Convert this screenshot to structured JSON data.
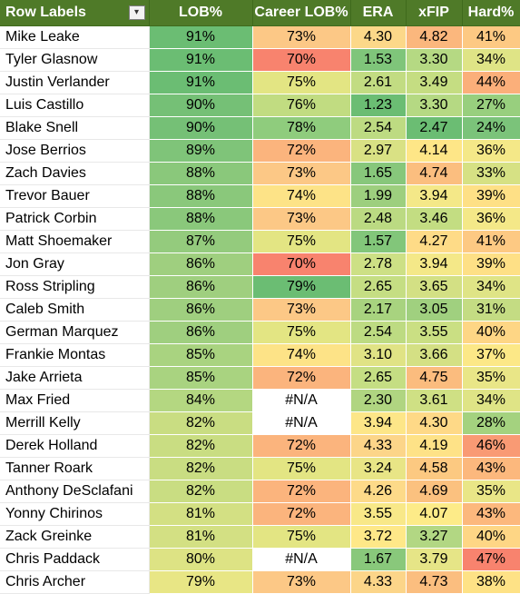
{
  "headers": {
    "name": "Row Labels",
    "lob": "LOB%",
    "career": "Career LOB%",
    "era": "ERA",
    "xfip": "xFIP",
    "hard": "Hard%"
  },
  "filter_icon": "filter-dropdown-icon",
  "rows": [
    {
      "name": "Mike Leake",
      "lob": "91%",
      "career": "73%",
      "era": "4.30",
      "xfip": "4.82",
      "hard": "41%",
      "colors": {
        "lob": "#6bbd73",
        "career": "#fcc886",
        "era": "#fcd889",
        "xfip": "#fbb77d",
        "hard": "#fdc983"
      }
    },
    {
      "name": "Tyler Glasnow",
      "lob": "91%",
      "career": "70%",
      "era": "1.53",
      "xfip": "3.30",
      "hard": "34%",
      "colors": {
        "lob": "#6bbd73",
        "career": "#f8836e",
        "era": "#7fc57a",
        "xfip": "#b5d983",
        "hard": "#dfe486"
      }
    },
    {
      "name": "Justin Verlander",
      "lob": "91%",
      "career": "75%",
      "era": "2.61",
      "xfip": "3.49",
      "hard": "44%",
      "colors": {
        "lob": "#6bbd73",
        "career": "#e3e583",
        "era": "#c2dc82",
        "xfip": "#c5dd82",
        "hard": "#fbaf7a"
      }
    },
    {
      "name": "Luis Castillo",
      "lob": "90%",
      "career": "76%",
      "era": "1.23",
      "xfip": "3.30",
      "hard": "27%",
      "colors": {
        "lob": "#75c076",
        "career": "#c1dc81",
        "era": "#6bbd73",
        "xfip": "#b5d983",
        "hard": "#98cf7e"
      }
    },
    {
      "name": "Blake Snell",
      "lob": "90%",
      "career": "78%",
      "era": "2.54",
      "xfip": "2.47",
      "hard": "24%",
      "colors": {
        "lob": "#75c076",
        "career": "#8fcc7d",
        "era": "#bddb82",
        "xfip": "#6bbd73",
        "hard": "#7bc37a"
      }
    },
    {
      "name": "Jose Berrios",
      "lob": "89%",
      "career": "72%",
      "era": "2.97",
      "xfip": "4.14",
      "hard": "36%",
      "colors": {
        "lob": "#7fc479",
        "career": "#fbb47d",
        "era": "#d9e184",
        "xfip": "#fee687",
        "hard": "#f4e888"
      }
    },
    {
      "name": "Zach Davies",
      "lob": "88%",
      "career": "73%",
      "era": "1.65",
      "xfip": "4.74",
      "hard": "33%",
      "colors": {
        "lob": "#8ac87b",
        "career": "#fcc886",
        "era": "#87c77b",
        "xfip": "#fbbe7f",
        "hard": "#d6e184"
      }
    },
    {
      "name": "Trevor Bauer",
      "lob": "88%",
      "career": "74%",
      "era": "1.99",
      "xfip": "3.94",
      "hard": "39%",
      "colors": {
        "lob": "#8ac87b",
        "career": "#fde387",
        "era": "#9dcf7e",
        "xfip": "#f4e888",
        "hard": "#fee086"
      }
    },
    {
      "name": "Patrick Corbin",
      "lob": "88%",
      "career": "73%",
      "era": "2.48",
      "xfip": "3.46",
      "hard": "36%",
      "colors": {
        "lob": "#8ac87b",
        "career": "#fcc886",
        "era": "#bbda82",
        "xfip": "#c3dd82",
        "hard": "#f4e888"
      }
    },
    {
      "name": "Matt Shoemaker",
      "lob": "87%",
      "career": "75%",
      "era": "1.57",
      "xfip": "4.27",
      "hard": "41%",
      "colors": {
        "lob": "#94cb7d",
        "career": "#e3e583",
        "era": "#82c67a",
        "xfip": "#fedb87",
        "hard": "#fdc983"
      }
    },
    {
      "name": "Jon Gray",
      "lob": "86%",
      "career": "70%",
      "era": "2.78",
      "xfip": "3.94",
      "hard": "39%",
      "colors": {
        "lob": "#9fcf7f",
        "career": "#f8836e",
        "era": "#cde085",
        "xfip": "#f4e888",
        "hard": "#fee086"
      }
    },
    {
      "name": "Ross Stripling",
      "lob": "86%",
      "career": "79%",
      "era": "2.65",
      "xfip": "3.65",
      "hard": "34%",
      "colors": {
        "lob": "#9fcf7f",
        "career": "#6bbd73",
        "era": "#c5de83",
        "xfip": "#d3e084",
        "hard": "#dfe486"
      }
    },
    {
      "name": "Caleb Smith",
      "lob": "86%",
      "career": "73%",
      "era": "2.17",
      "xfip": "3.05",
      "hard": "31%",
      "colors": {
        "lob": "#9fcf7f",
        "career": "#fcc886",
        "era": "#a8d37f",
        "xfip": "#a0d07f",
        "hard": "#c4dc83"
      }
    },
    {
      "name": "German Marquez",
      "lob": "86%",
      "career": "75%",
      "era": "2.54",
      "xfip": "3.55",
      "hard": "40%",
      "colors": {
        "lob": "#9fcf7f",
        "career": "#e3e583",
        "era": "#bddb82",
        "xfip": "#cadf83",
        "hard": "#fed685"
      }
    },
    {
      "name": "Frankie Montas",
      "lob": "85%",
      "career": "74%",
      "era": "3.10",
      "xfip": "3.66",
      "hard": "37%",
      "colors": {
        "lob": "#a9d380",
        "career": "#fde387",
        "era": "#e0e385",
        "xfip": "#d4e084",
        "hard": "#fce887"
      }
    },
    {
      "name": "Jake Arrieta",
      "lob": "85%",
      "career": "72%",
      "era": "2.65",
      "xfip": "4.75",
      "hard": "35%",
      "colors": {
        "lob": "#a9d380",
        "career": "#fbb47d",
        "era": "#c5de83",
        "xfip": "#fbbc7e",
        "hard": "#e9e687"
      }
    },
    {
      "name": "Max Fried",
      "lob": "84%",
      "career": "#N/A",
      "era": "2.30",
      "xfip": "3.61",
      "hard": "34%",
      "colors": {
        "lob": "#b4d781",
        "career": "#ffffff",
        "era": "#b0d581",
        "xfip": "#cfe084",
        "hard": "#dfe486"
      }
    },
    {
      "name": "Merrill Kelly",
      "lob": "82%",
      "career": "#N/A",
      "era": "3.94",
      "xfip": "4.30",
      "hard": "28%",
      "colors": {
        "lob": "#c9dd82",
        "career": "#ffffff",
        "era": "#fde688",
        "xfip": "#fed987",
        "hard": "#a4d27f"
      }
    },
    {
      "name": "Derek Holland",
      "lob": "82%",
      "career": "72%",
      "era": "4.33",
      "xfip": "4.19",
      "hard": "46%",
      "colors": {
        "lob": "#c9dd82",
        "career": "#fbb47d",
        "era": "#fcd589",
        "xfip": "#fee287",
        "hard": "#f99a74"
      }
    },
    {
      "name": "Tanner Roark",
      "lob": "82%",
      "career": "75%",
      "era": "3.24",
      "xfip": "4.58",
      "hard": "43%",
      "colors": {
        "lob": "#c9dd82",
        "career": "#e3e583",
        "era": "#e8e586",
        "xfip": "#fcc981",
        "hard": "#fcb87d"
      }
    },
    {
      "name": "Anthony DeSclafani",
      "lob": "82%",
      "career": "72%",
      "era": "4.26",
      "xfip": "4.69",
      "hard": "35%",
      "colors": {
        "lob": "#c9dd82",
        "career": "#fbb47d",
        "era": "#fdda89",
        "xfip": "#fbc17f",
        "hard": "#e9e687"
      }
    },
    {
      "name": "Yonny Chirinos",
      "lob": "81%",
      "career": "72%",
      "era": "3.55",
      "xfip": "4.07",
      "hard": "43%",
      "colors": {
        "lob": "#d3e083",
        "career": "#fbb47d",
        "era": "#f8e888",
        "xfip": "#fdeb88",
        "hard": "#fcb87d"
      }
    },
    {
      "name": "Zack Greinke",
      "lob": "81%",
      "career": "75%",
      "era": "3.72",
      "xfip": "3.27",
      "hard": "40%",
      "colors": {
        "lob": "#d3e083",
        "career": "#e3e583",
        "era": "#fee888",
        "xfip": "#b2d783",
        "hard": "#fed685"
      }
    },
    {
      "name": "Chris Paddack",
      "lob": "80%",
      "career": "#N/A",
      "era": "1.67",
      "xfip": "3.79",
      "hard": "47%",
      "colors": {
        "lob": "#dde384",
        "career": "#ffffff",
        "era": "#89c87b",
        "xfip": "#e6e587",
        "hard": "#f8836e"
      }
    },
    {
      "name": "Chris Archer",
      "lob": "79%",
      "career": "73%",
      "era": "4.33",
      "xfip": "4.73",
      "hard": "38%",
      "colors": {
        "lob": "#e8e685",
        "career": "#fcc886",
        "era": "#fcd589",
        "xfip": "#fbbe7f",
        "hard": "#fee286"
      }
    }
  ]
}
